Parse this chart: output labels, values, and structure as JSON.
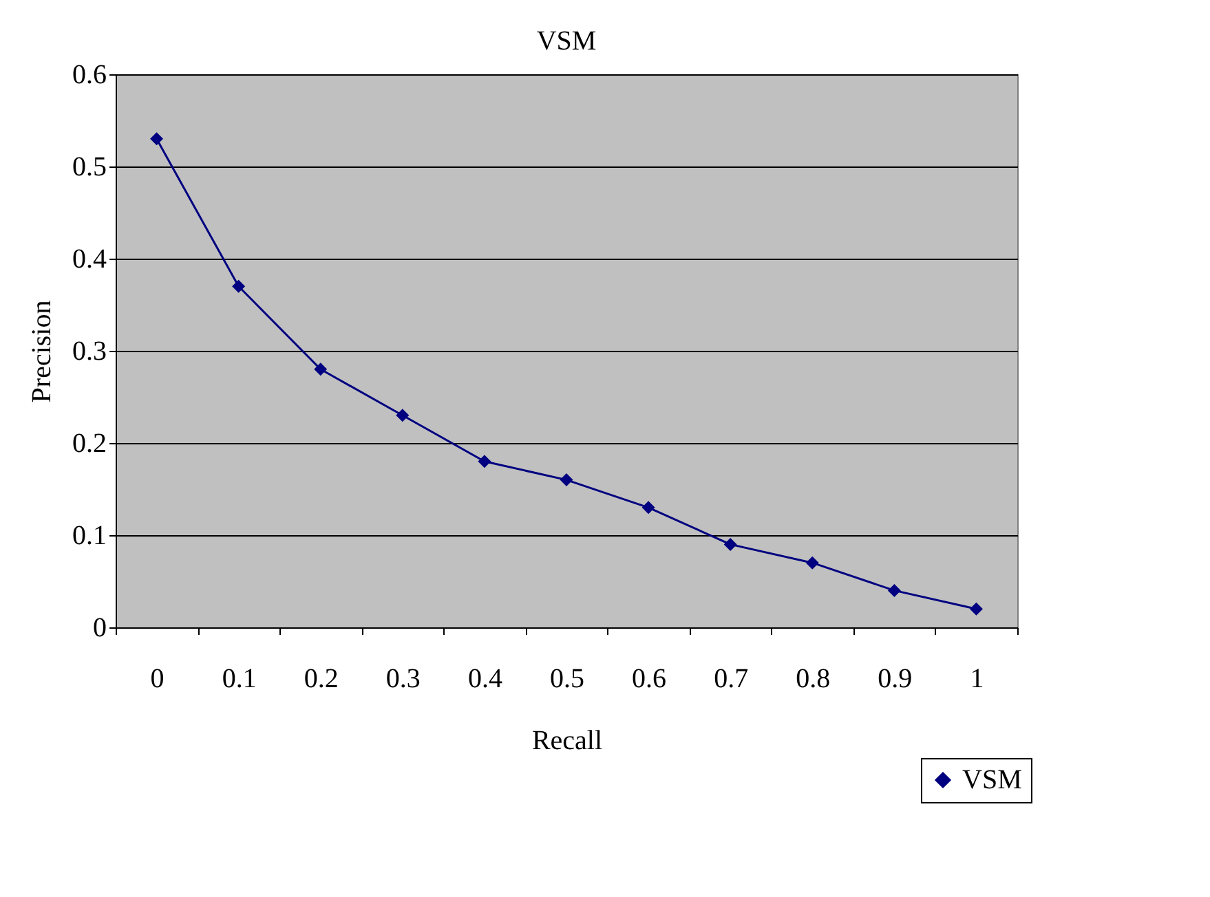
{
  "chart_data": {
    "type": "line",
    "title": "VSM",
    "xlabel": "Recall",
    "ylabel": "Precision",
    "categories": [
      "0",
      "0.1",
      "0.2",
      "0.3",
      "0.4",
      "0.5",
      "0.6",
      "0.7",
      "0.8",
      "0.9",
      "1"
    ],
    "series": [
      {
        "name": "VSM",
        "color": "#000080",
        "values": [
          0.53,
          0.37,
          0.28,
          0.23,
          0.18,
          0.16,
          0.13,
          0.09,
          0.07,
          0.04,
          0.02
        ]
      }
    ],
    "ylim": [
      0,
      0.6
    ],
    "yticks": [
      0,
      0.1,
      0.2,
      0.3,
      0.4,
      0.5,
      0.6
    ],
    "grid": "y",
    "legend": "bottom right",
    "marker": "diamond",
    "line_style": "solid"
  }
}
